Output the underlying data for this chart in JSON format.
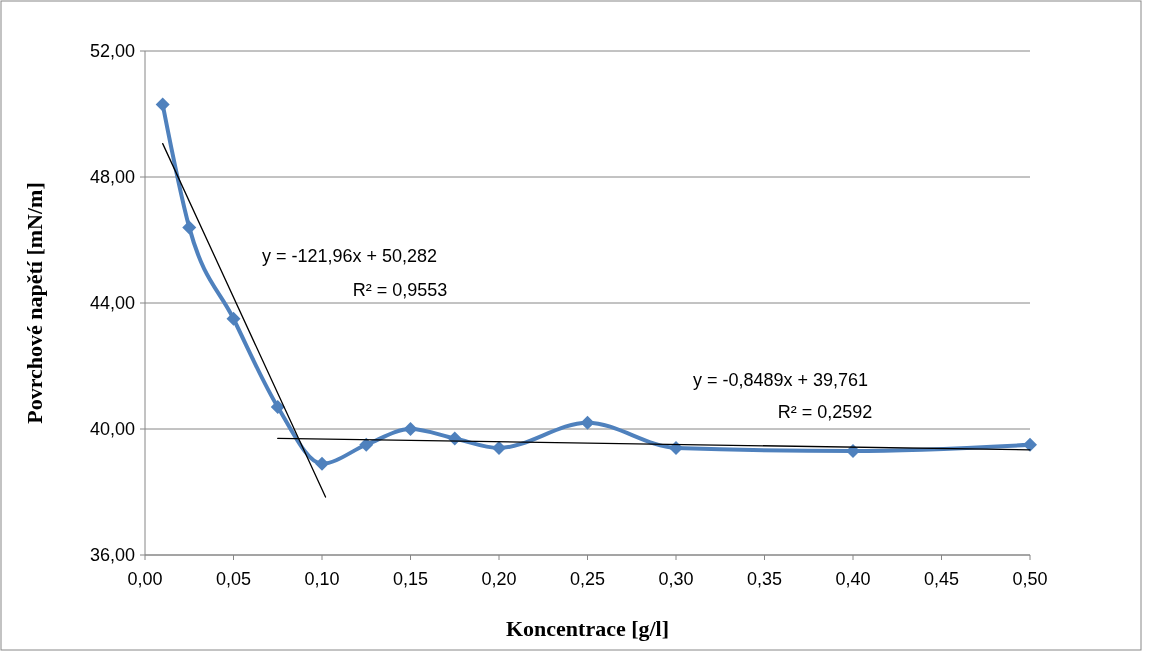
{
  "chart_data": {
    "type": "line",
    "xlabel": "Koncentrace [g/l]",
    "ylabel": "Povrchové napětí [mN/m]",
    "x": [
      0.01,
      0.025,
      0.05,
      0.075,
      0.1,
      0.125,
      0.15,
      0.175,
      0.2,
      0.25,
      0.3,
      0.4,
      0.5
    ],
    "series": [
      {
        "color": "#4f81bd",
        "values": [
          50.3,
          46.4,
          43.5,
          40.7,
          38.9,
          39.5,
          40.0,
          39.7,
          39.4,
          40.2,
          39.4,
          39.3,
          39.5
        ],
        "marker": "diamond"
      },
      {
        "type": "line",
        "color": "#000000",
        "x": [
          0.01,
          0.102
        ],
        "values": [
          49.06,
          37.84
        ],
        "marker": "none"
      },
      {
        "type": "line",
        "color": "#000000",
        "x": [
          0.075,
          0.5
        ],
        "values": [
          39.7,
          39.34
        ],
        "marker": "none"
      }
    ],
    "xlim": [
      0,
      0.5
    ],
    "xticks": [
      {
        "value": 0,
        "label": "0,00"
      },
      {
        "value": 0.05,
        "label": "0,05"
      },
      {
        "value": 0.1,
        "label": "0,10"
      },
      {
        "value": 0.15,
        "label": "0,15"
      },
      {
        "value": 0.2,
        "label": "0,20"
      },
      {
        "value": 0.25,
        "label": "0,25"
      },
      {
        "value": 0.3,
        "label": "0,30"
      },
      {
        "value": 0.35,
        "label": "0,35"
      },
      {
        "value": 0.4,
        "label": "0,40"
      },
      {
        "value": 0.45,
        "label": "0,45"
      },
      {
        "value": 0.5,
        "label": "0,50"
      }
    ],
    "ylim": [
      36,
      52
    ],
    "yticks": [
      {
        "value": 36,
        "label": "36,00"
      },
      {
        "value": 40,
        "label": "40,00"
      },
      {
        "value": 44,
        "label": "44,00"
      },
      {
        "value": 48,
        "label": "48,00"
      },
      {
        "value": 52,
        "label": "52,00"
      }
    ],
    "grid": "y",
    "annotations": [
      "y = -121,96x + 50,282",
      "R² = 0,9553",
      "y = -0,8489x + 39,761",
      "R² = 0,2592"
    ]
  }
}
